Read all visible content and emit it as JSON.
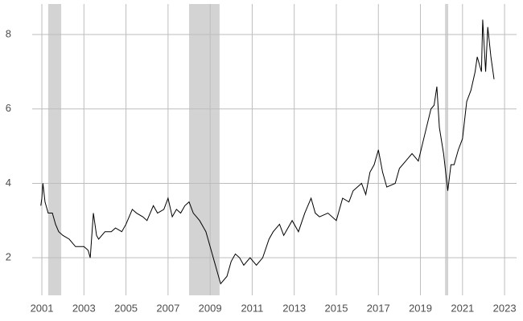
{
  "chart_data": {
    "type": "line",
    "x": [
      2000.95,
      2001.0,
      2001.05,
      2001.15,
      2001.3,
      2001.5,
      2001.65,
      2001.8,
      2002.0,
      2002.3,
      2002.6,
      2002.8,
      2003.0,
      2003.2,
      2003.3,
      2003.45,
      2003.6,
      2003.7,
      2004.0,
      2004.3,
      2004.5,
      2004.8,
      2005.0,
      2005.3,
      2005.5,
      2005.8,
      2006.0,
      2006.3,
      2006.5,
      2006.8,
      2007.0,
      2007.2,
      2007.4,
      2007.6,
      2007.8,
      2008.0,
      2008.2,
      2008.5,
      2008.8,
      2009.0,
      2009.2,
      2009.35,
      2009.5,
      2009.8,
      2010.0,
      2010.2,
      2010.4,
      2010.6,
      2010.9,
      2011.2,
      2011.5,
      2011.8,
      2012.0,
      2012.3,
      2012.5,
      2012.9,
      2013.2,
      2013.5,
      2013.8,
      2014.0,
      2014.2,
      2014.6,
      2015.0,
      2015.3,
      2015.6,
      2015.8,
      2016.0,
      2016.2,
      2016.4,
      2016.6,
      2016.8,
      2017.0,
      2017.2,
      2017.4,
      2017.8,
      2018.0,
      2018.3,
      2018.6,
      2018.9,
      2019.2,
      2019.5,
      2019.65,
      2019.78,
      2019.9,
      2020.1,
      2020.3,
      2020.45,
      2020.6,
      2020.8,
      2021.0,
      2021.2,
      2021.4,
      2021.6,
      2021.7,
      2021.9,
      2021.96,
      2022.1,
      2022.2,
      2022.35,
      2022.5
    ],
    "series": [
      {
        "color": "#000000",
        "values": [
          3.4,
          3.6,
          4.0,
          3.5,
          3.2,
          3.2,
          2.9,
          2.7,
          2.6,
          2.5,
          2.3,
          2.3,
          2.3,
          2.2,
          2.0,
          3.2,
          2.6,
          2.5,
          2.7,
          2.7,
          2.8,
          2.7,
          2.9,
          3.3,
          3.2,
          3.1,
          3.0,
          3.4,
          3.2,
          3.3,
          3.6,
          3.1,
          3.3,
          3.2,
          3.4,
          3.5,
          3.2,
          3.0,
          2.7,
          2.3,
          1.9,
          1.6,
          1.3,
          1.5,
          1.9,
          2.1,
          2.0,
          1.8,
          2.0,
          1.8,
          2.0,
          2.5,
          2.7,
          2.9,
          2.6,
          3.0,
          2.7,
          3.2,
          3.6,
          3.2,
          3.1,
          3.2,
          3.0,
          3.6,
          3.5,
          3.8,
          3.9,
          4.0,
          3.7,
          4.3,
          4.5,
          4.9,
          4.3,
          3.9,
          4.0,
          4.4,
          4.6,
          4.8,
          4.6,
          5.3,
          6.0,
          6.1,
          6.6,
          5.5,
          4.8,
          3.8,
          4.5,
          4.5,
          4.9,
          5.2,
          6.2,
          6.5,
          7.0,
          7.4,
          7.0,
          8.4,
          7.0,
          8.2,
          7.4,
          6.8
        ]
      }
    ],
    "shaded_ranges": [
      [
        2001.3,
        2001.92
      ],
      [
        2008.0,
        2009.45
      ],
      [
        2020.17,
        2020.32
      ]
    ],
    "shade_color": "#d3d3d3",
    "xlim": [
      2000.54,
      2023.57
    ],
    "ylim": [
      0.99,
      8.82
    ],
    "xticks": [
      2001,
      2003,
      2005,
      2007,
      2009,
      2011,
      2013,
      2015,
      2017,
      2019,
      2021,
      2023
    ],
    "yticks": [
      2,
      4,
      6,
      8
    ],
    "grid": true
  }
}
